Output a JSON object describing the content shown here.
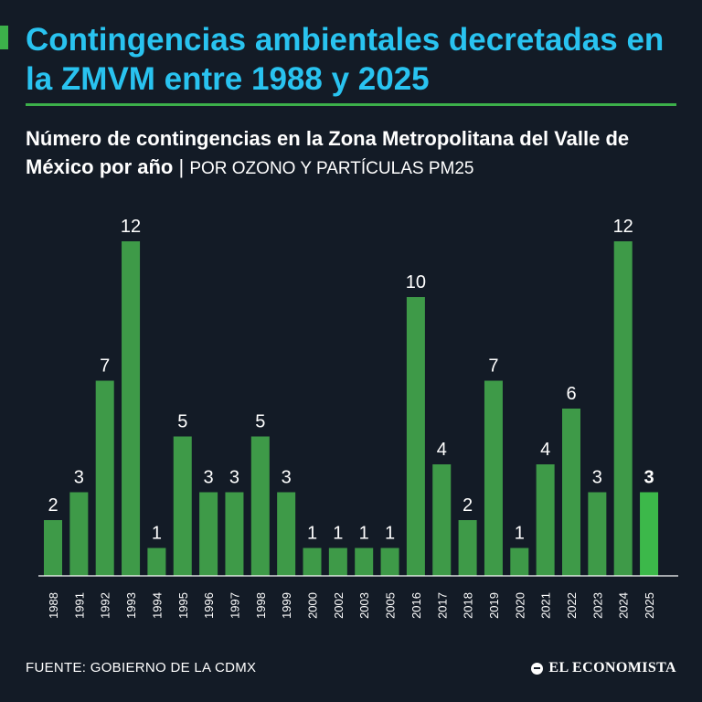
{
  "header": {
    "title": "Contingencias ambientales decretadas en la ZMVM entre 1988 y 2025",
    "subtitle_main": "Número de contingencias en la Zona Metropolitana del Valle de México por año",
    "subtitle_separator": "|",
    "subtitle_detail": "POR OZONO Y PARTÍCULAS PM25"
  },
  "colors": {
    "background": "#131b26",
    "title": "#29c3f0",
    "accent": "#3cb04a",
    "bar": "#3e9a48",
    "bar_highlight": "#3cb84a",
    "axis": "#ffffff"
  },
  "chart_data": {
    "type": "bar",
    "title": "Número de contingencias en la Zona Metropolitana del Valle de México por año",
    "xlabel": "",
    "ylabel": "",
    "ylim": [
      0,
      12
    ],
    "grid": false,
    "categories": [
      "1988",
      "1991",
      "1992",
      "1993",
      "1994",
      "1995",
      "1996",
      "1997",
      "1998",
      "1999",
      "2000",
      "2002",
      "2003",
      "2005",
      "2016",
      "2017",
      "2018",
      "2019",
      "2020",
      "2021",
      "2022",
      "2023",
      "2024",
      "2025"
    ],
    "values": [
      2,
      3,
      7,
      12,
      1,
      5,
      3,
      3,
      5,
      3,
      1,
      1,
      1,
      1,
      10,
      4,
      2,
      7,
      1,
      4,
      6,
      3,
      12,
      3
    ],
    "highlight_index": 23
  },
  "footer": {
    "source": "FUENTE: GOBIERNO DE LA CDMX",
    "logo": "EL ECONOMISTA",
    "logo_icon": "el-economista-mark-icon"
  }
}
